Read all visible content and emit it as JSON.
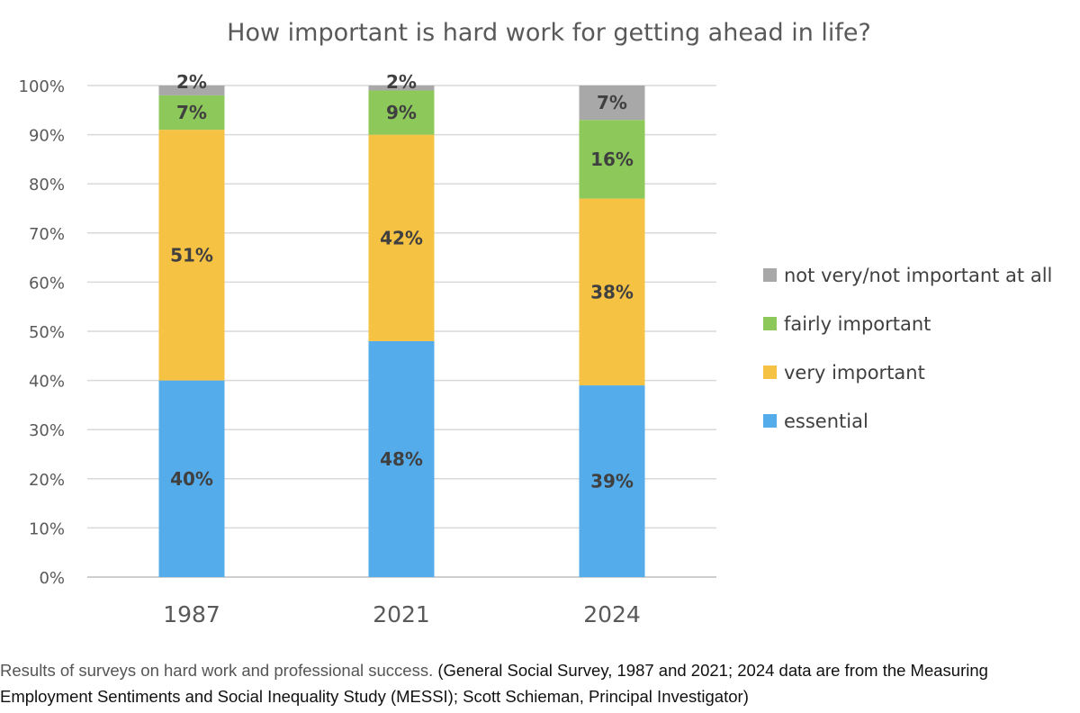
{
  "chart_data": {
    "type": "bar",
    "stacked": true,
    "title": "How important is hard work for getting ahead in life?",
    "xlabel": "",
    "ylabel": "",
    "ylim": [
      0,
      100
    ],
    "yticks": [
      "0%",
      "10%",
      "20%",
      "30%",
      "40%",
      "50%",
      "60%",
      "70%",
      "80%",
      "90%",
      "100%"
    ],
    "categories": [
      "1987",
      "2021",
      "2024"
    ],
    "legend_position": "right",
    "grid": true,
    "series": [
      {
        "name": "essential",
        "color": "#55ACEA",
        "values": [
          40,
          48,
          39
        ],
        "labels": [
          "40%",
          "48%",
          "39%"
        ]
      },
      {
        "name": "very important",
        "color": "#F5C243",
        "values": [
          51,
          42,
          38
        ],
        "labels": [
          "51%",
          "42%",
          "38%"
        ]
      },
      {
        "name": "fairly important",
        "color": "#8DC85A",
        "values": [
          7,
          9,
          16
        ],
        "labels": [
          "7%",
          "9%",
          "16%"
        ]
      },
      {
        "name": "not very/not important at all",
        "color": "#A8A8A8",
        "values": [
          2,
          2,
          7
        ],
        "labels": [
          "2%",
          "2%",
          "7%"
        ]
      }
    ]
  },
  "caption": {
    "lead": "Results of surveys on hard work and professional success.",
    "source": " (General Social Survey, 1987 and 2021; 2024 data are from the Measuring Employment Sentiments and Social Inequality Study (MESSI); Scott Schieman, Principal Investigator)"
  }
}
